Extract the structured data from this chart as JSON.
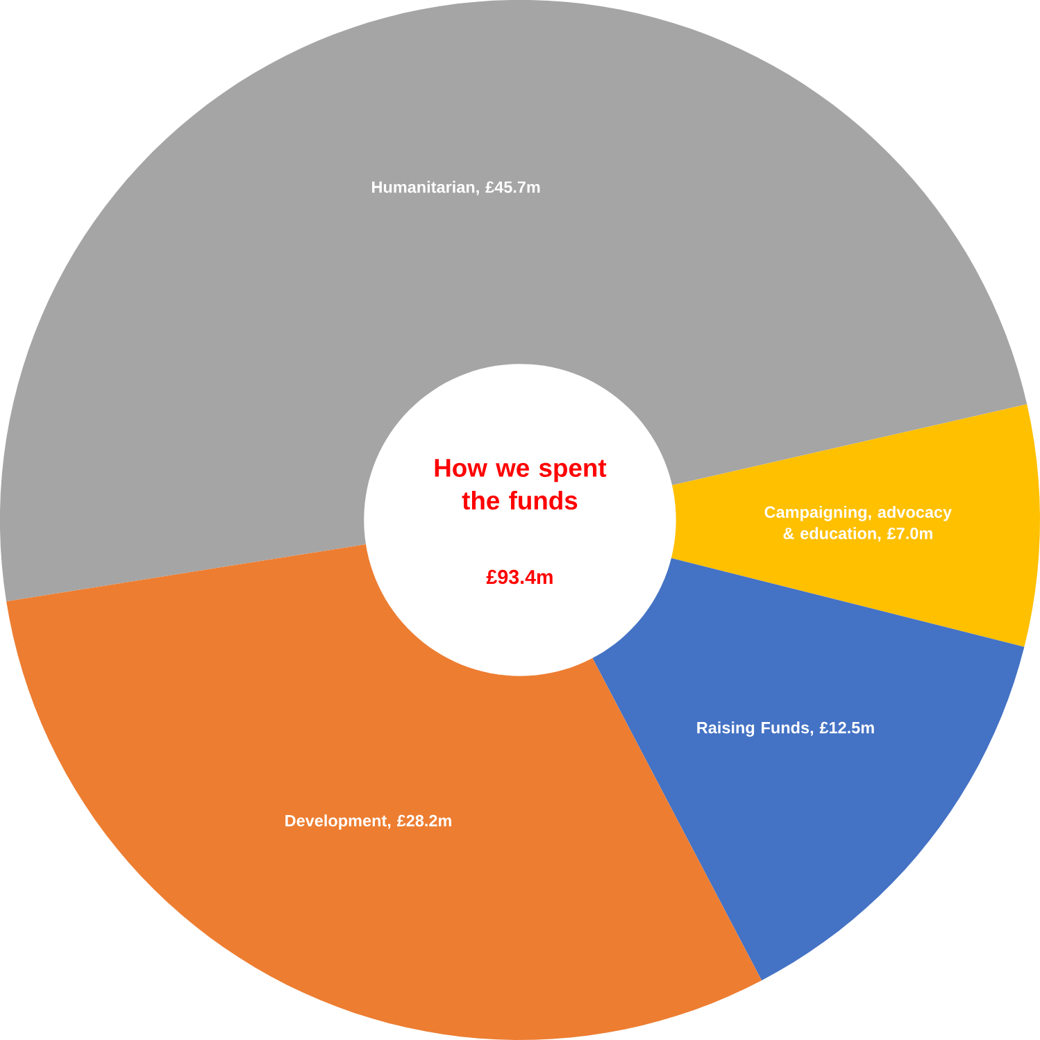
{
  "chart_data": {
    "type": "donut",
    "title": "How we spent the funds",
    "subtitle": "£93.4m",
    "categories": [
      "Humanitarian, £45.7m",
      "Campaigning, advocacy & education, £7.0m",
      "Raising Funds, £12.5m",
      "Development, £28.2m"
    ],
    "values": [
      45.7,
      7.0,
      12.5,
      28.2
    ],
    "colors": [
      "#a5a5a5",
      "#ffc000",
      "#4472c4",
      "#ed7d31"
    ]
  }
}
